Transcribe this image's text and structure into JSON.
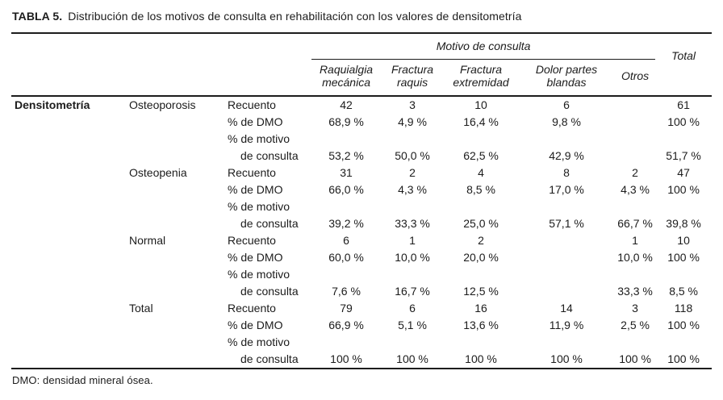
{
  "title": {
    "label": "TABLA 5.",
    "text": "Distribución de los motivos de consulta en rehabilitación con los valores de densitometría"
  },
  "table": {
    "motivo_header": "Motivo de consulta",
    "total_header": "Total",
    "dimension_label": "Densitometría",
    "columns": [
      {
        "line1": "Raquialgia",
        "line2": "mecánica"
      },
      {
        "line1": "Fractura",
        "line2": "raquis"
      },
      {
        "line1": "Fractura",
        "line2": "extremidad"
      },
      {
        "line1": "Dolor partes",
        "line2": "blandas"
      },
      {
        "line1": "Otros",
        "line2": ""
      }
    ],
    "groups": [
      {
        "label": "Osteoporosis",
        "rows": [
          {
            "stat": "Recuento",
            "values": [
              "42",
              "3",
              "10",
              "6",
              "",
              "61"
            ]
          },
          {
            "stat": "% de DMO",
            "values": [
              "68,9 %",
              "4,9 %",
              "16,4 %",
              "9,8 %",
              "",
              "100 %"
            ]
          },
          {
            "stat": "% de motivo",
            "values": [
              "",
              "",
              "",
              "",
              "",
              ""
            ]
          },
          {
            "stat": "de consulta",
            "values": [
              "53,2 %",
              "50,0 %",
              "62,5 %",
              "42,9 %",
              "",
              "51,7 %"
            ]
          }
        ]
      },
      {
        "label": "Osteopenia",
        "rows": [
          {
            "stat": "Recuento",
            "values": [
              "31",
              "2",
              "4",
              "8",
              "2",
              "47"
            ]
          },
          {
            "stat": "% de DMO",
            "values": [
              "66,0 %",
              "4,3 %",
              "8,5 %",
              "17,0 %",
              "4,3 %",
              "100 %"
            ]
          },
          {
            "stat": "% de motivo",
            "values": [
              "",
              "",
              "",
              "",
              "",
              ""
            ]
          },
          {
            "stat": "de consulta",
            "values": [
              "39,2 %",
              "33,3 %",
              "25,0 %",
              "57,1 %",
              "66,7 %",
              "39,8 %"
            ]
          }
        ]
      },
      {
        "label": "Normal",
        "rows": [
          {
            "stat": "Recuento",
            "values": [
              "6",
              "1",
              "2",
              "",
              "1",
              "10"
            ]
          },
          {
            "stat": "% de DMO",
            "values": [
              "60,0 %",
              "10,0 %",
              "20,0 %",
              "",
              "10,0 %",
              "100 %"
            ]
          },
          {
            "stat": "% de motivo",
            "values": [
              "",
              "",
              "",
              "",
              "",
              ""
            ]
          },
          {
            "stat": "de consulta",
            "values": [
              "7,6 %",
              "16,7 %",
              "12,5 %",
              "",
              "33,3 %",
              "8,5 %"
            ]
          }
        ]
      },
      {
        "label": "Total",
        "rows": [
          {
            "stat": "Recuento",
            "values": [
              "79",
              "6",
              "16",
              "14",
              "3",
              "118"
            ]
          },
          {
            "stat": "% de DMO",
            "values": [
              "66,9 %",
              "5,1 %",
              "13,6 %",
              "11,9 %",
              "2,5 %",
              "100 %"
            ]
          },
          {
            "stat": "% de motivo",
            "values": [
              "",
              "",
              "",
              "",
              "",
              ""
            ]
          },
          {
            "stat": "de consulta",
            "values": [
              "100 %",
              "100 %",
              "100 %",
              "100 %",
              "100 %",
              "100 %"
            ]
          }
        ]
      }
    ]
  },
  "footnote": "DMO: densidad mineral ósea."
}
